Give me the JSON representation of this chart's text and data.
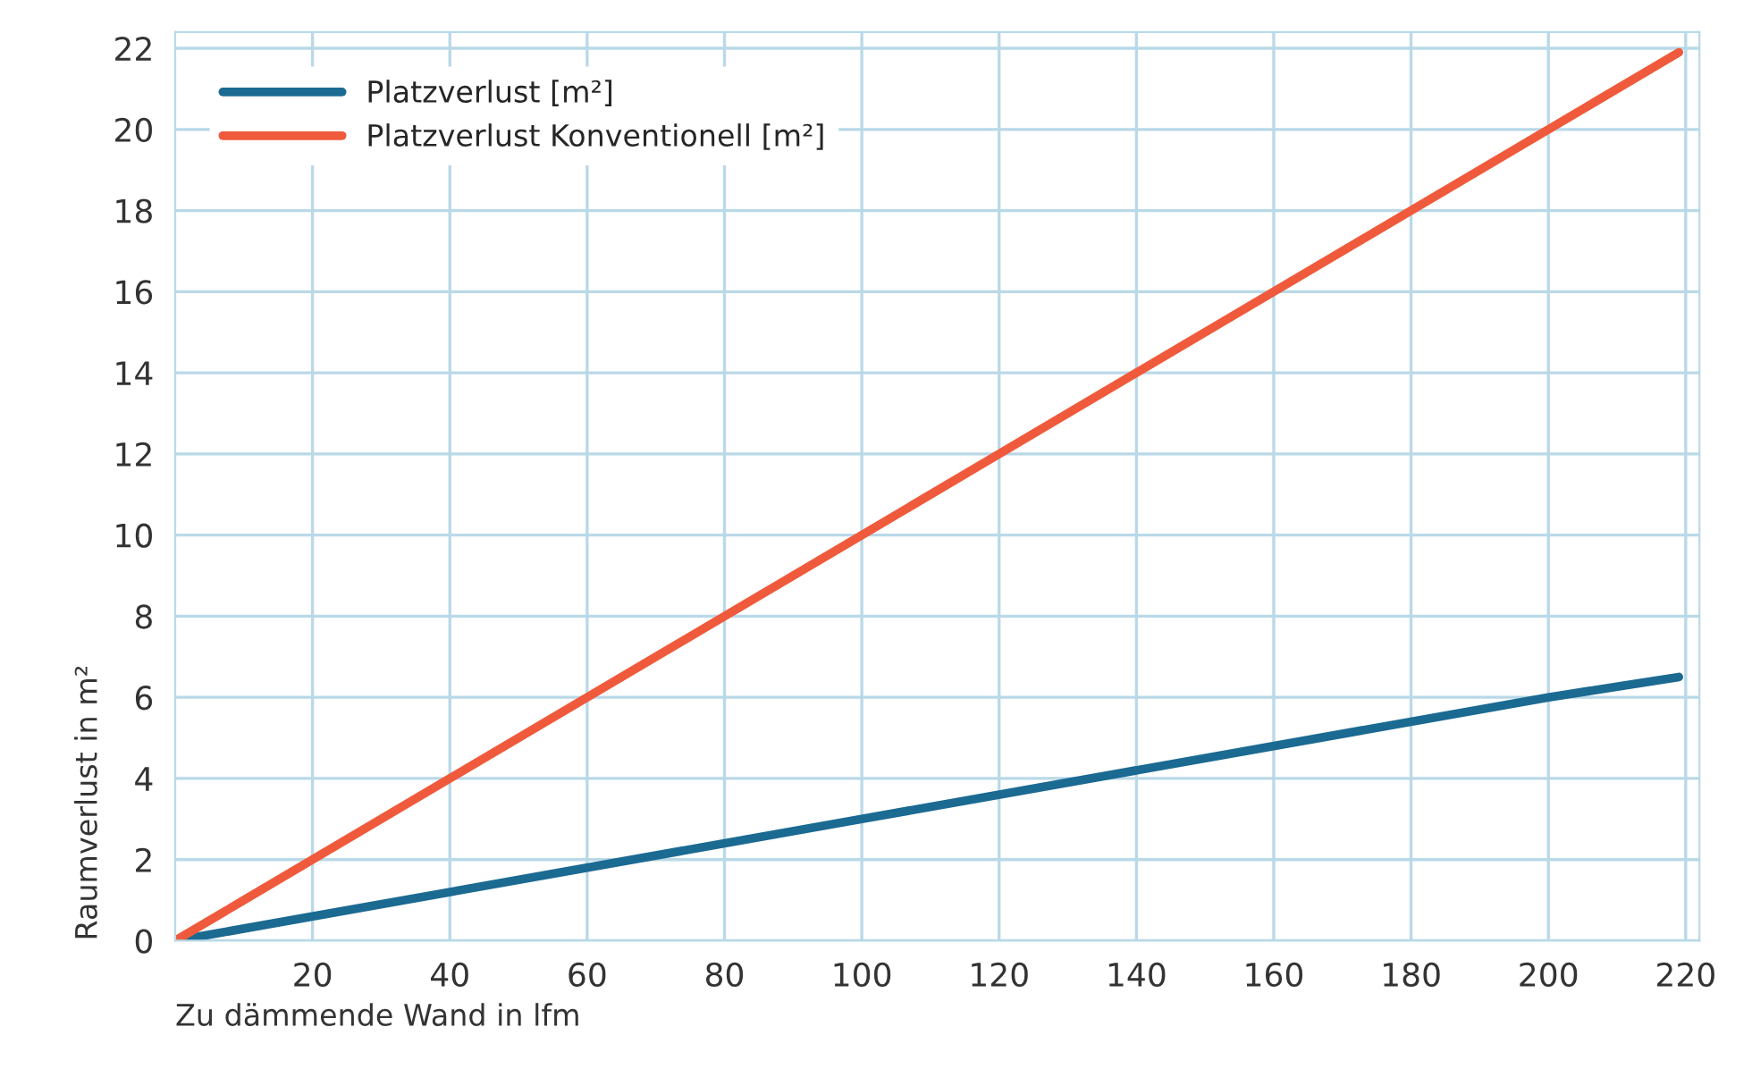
{
  "chart_data": {
    "type": "line",
    "xlabel": "Zu dämmende Wand in lfm",
    "ylabel": "Raumverlust in m²",
    "xlim": [
      0,
      222
    ],
    "xticks": [
      20,
      40,
      60,
      80,
      100,
      120,
      140,
      160,
      180,
      200,
      220
    ],
    "ylim": [
      0,
      22.4
    ],
    "yticks": [
      0,
      2,
      4,
      6,
      8,
      10,
      12,
      14,
      16,
      18,
      20,
      22
    ],
    "grid": true,
    "legend": "top left",
    "marker": "none",
    "line_style": "solid",
    "series": [
      {
        "name": "Platzverlust [m²]",
        "color": "#1b6a92",
        "x": [
          0,
          100,
          200,
          219
        ],
        "values": [
          0,
          3.0,
          6.0,
          6.5
        ]
      },
      {
        "name": "Platzverlust Konventionell [m²]",
        "color": "#f05a3c",
        "x": [
          0,
          219
        ],
        "values": [
          0,
          21.9
        ]
      }
    ]
  }
}
